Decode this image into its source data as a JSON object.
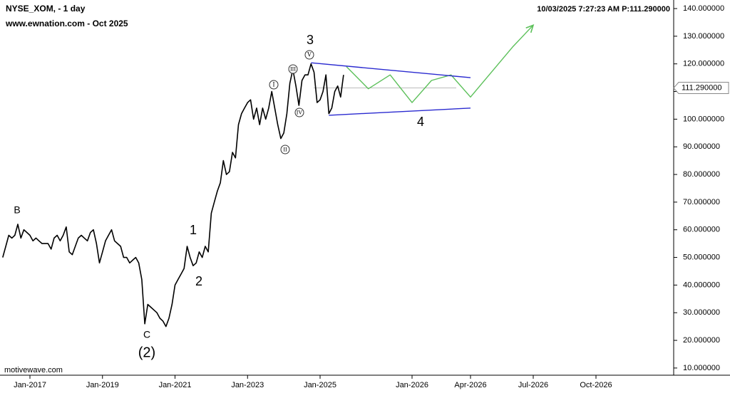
{
  "chart_data": {
    "type": "line",
    "title": "NYSE_XOM, - 1 day",
    "subtitle": "www.ewnation.com  - Oct 2025",
    "header_right": "10/03/2025 7:27:23 AM  P:111.290000",
    "footer": "motivewave.com",
    "series": [
      {
        "color": "#000000",
        "x": [
          "2016-04",
          "2016-05",
          "2016-06",
          "2016-07",
          "2016-08",
          "2016-09",
          "2016-10",
          "2016-11",
          "2016-12",
          "2017-01",
          "2017-02",
          "2017-03",
          "2017-04",
          "2017-05",
          "2017-06",
          "2017-07",
          "2017-08",
          "2017-09",
          "2017-10",
          "2017-11",
          "2017-12",
          "2018-01",
          "2018-02",
          "2018-03",
          "2018-04",
          "2018-05",
          "2018-06",
          "2018-07",
          "2018-08",
          "2018-09",
          "2018-10",
          "2018-11",
          "2018-12",
          "2019-01",
          "2019-02",
          "2019-03",
          "2019-04",
          "2019-05",
          "2019-06",
          "2019-07",
          "2019-08",
          "2019-09",
          "2019-10",
          "2019-11",
          "2019-12",
          "2020-01",
          "2020-02",
          "2020-03",
          "2020-04",
          "2020-05",
          "2020-06",
          "2020-07",
          "2020-08",
          "2020-09",
          "2020-10",
          "2020-11",
          "2020-12",
          "2021-01",
          "2021-02",
          "2021-03",
          "2021-04",
          "2021-05",
          "2021-06",
          "2021-07",
          "2021-08",
          "2021-09",
          "2021-10",
          "2021-11",
          "2021-12",
          "2022-01",
          "2022-02",
          "2022-03",
          "2022-04",
          "2022-05",
          "2022-06",
          "2022-07",
          "2022-08",
          "2022-09",
          "2022-10",
          "2022-11",
          "2022-12",
          "2023-01",
          "2023-02",
          "2023-03",
          "2023-04",
          "2023-05",
          "2023-06",
          "2023-07",
          "2023-08",
          "2023-09",
          "2023-10",
          "2023-11",
          "2023-12",
          "2024-01",
          "2024-02",
          "2024-03",
          "2024-04",
          "2024-05",
          "2024-06",
          "2024-07",
          "2024-08",
          "2024-09",
          "2024-10",
          "2024-11",
          "2024-12",
          "2025-01",
          "2025-02",
          "2025-03",
          "2025-04",
          "2025-05",
          "2025-06",
          "2025-07",
          "2025-08",
          "2025-09"
        ],
        "values": [
          50,
          54,
          58,
          57,
          58,
          62,
          57,
          60,
          59,
          58,
          56,
          57,
          56,
          55,
          55,
          55,
          53,
          57,
          58,
          56,
          58,
          61,
          52,
          51,
          54,
          57,
          58,
          57,
          56,
          59,
          60,
          55,
          48,
          52,
          56,
          58,
          60,
          56,
          55,
          54,
          50,
          50,
          48,
          49,
          50,
          48,
          42,
          26,
          33,
          32,
          31,
          30,
          28,
          27,
          25,
          28,
          33,
          40,
          42,
          44,
          46,
          54,
          50,
          47,
          48,
          52,
          50,
          54,
          52,
          66,
          70,
          74,
          77,
          85,
          80,
          81,
          88,
          86,
          98,
          102,
          104,
          106,
          107,
          100,
          104,
          98,
          104,
          100,
          104,
          110,
          104,
          98,
          93,
          95,
          102,
          113,
          118,
          112,
          105,
          114,
          116,
          116,
          120,
          117,
          106,
          107,
          110,
          116,
          102,
          104,
          110,
          112,
          108,
          116
        ]
      },
      {
        "color": "#5cc05a",
        "x": [
          "2025-10",
          "2025-11",
          "2025-12",
          "2026-01",
          "2026-02",
          "2026-03",
          "2026-04",
          "2026-05",
          "2026-06",
          "2026-07"
        ],
        "values": [
          119,
          111,
          116,
          106,
          114,
          116,
          108,
          117,
          126,
          134
        ]
      },
      {
        "color": "#2a2ad0",
        "x": [
          "2024-10",
          "2026-04"
        ],
        "values": [
          120.4,
          115
        ]
      },
      {
        "color": "#2a2ad0",
        "x": [
          "2025-04",
          "2026-04"
        ],
        "values": [
          101.4,
          104
        ]
      }
    ],
    "current_price": {
      "value": 111.29,
      "label": "111.290000"
    },
    "ylim": [
      7.4,
      143.1
    ],
    "yticks": [
      {
        "value": 140,
        "label": "140.000000"
      },
      {
        "value": 130,
        "label": "130.000000"
      },
      {
        "value": 120,
        "label": "120.000000"
      },
      {
        "value": 110,
        "label": "110.000000"
      },
      {
        "value": 100,
        "label": "100.000000"
      },
      {
        "value": 90,
        "label": "90.000000"
      },
      {
        "value": 80,
        "label": "80.000000"
      },
      {
        "value": 70,
        "label": "70.000000"
      },
      {
        "value": 60,
        "label": "60.000000"
      },
      {
        "value": 50,
        "label": "50.000000"
      },
      {
        "value": 40,
        "label": "40.000000"
      },
      {
        "value": 30,
        "label": "30.000000"
      },
      {
        "value": 20,
        "label": "20.000000"
      },
      {
        "value": 10,
        "label": "10.000000"
      }
    ],
    "xticks": [
      {
        "value": "2017-01",
        "label": "Jan-2017"
      },
      {
        "value": "2019-01",
        "label": "Jan-2019"
      },
      {
        "value": "2021-01",
        "label": "Jan-2021"
      },
      {
        "value": "2023-01",
        "label": "Jan-2023"
      },
      {
        "value": "2025-01",
        "label": "Jan-2025"
      },
      {
        "value": "2026-01",
        "label": "Jan-2026"
      },
      {
        "value": "2026-04",
        "label": "Apr-2026"
      },
      {
        "value": "2026-07",
        "label": "Jul-2026"
      },
      {
        "value": "2026-10",
        "label": "Oct-2026"
      }
    ],
    "annotations": [
      {
        "text": "B",
        "color": "#e020e0"
      },
      {
        "text": "C",
        "color": "#e020e0"
      },
      {
        "text": "(2)",
        "color": "#1a1ad0"
      },
      {
        "text": "1",
        "color": "#1a1ad0"
      },
      {
        "text": "2",
        "color": "#1a1ad0"
      },
      {
        "text": "3",
        "color": "#1a1ad0"
      },
      {
        "text": "4",
        "color": "#1a1ad0"
      },
      {
        "text": "I",
        "color": "#333333",
        "style": "circled"
      },
      {
        "text": "II",
        "color": "#333333",
        "style": "circled"
      },
      {
        "text": "III",
        "color": "#333333",
        "style": "circled"
      },
      {
        "text": "IV",
        "color": "#333333",
        "style": "circled"
      },
      {
        "text": "V",
        "color": "#333333",
        "style": "circled"
      }
    ]
  }
}
